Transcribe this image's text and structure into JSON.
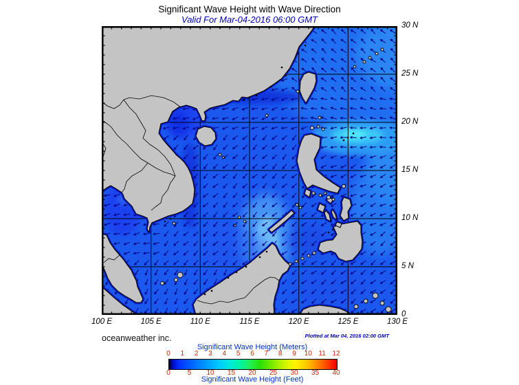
{
  "header": {
    "title": "Significant Wave Height with Wave Direction",
    "subtitle": "Valid For Mar-04-2016 06:00 GMT"
  },
  "map": {
    "lat_labels": [
      "30 N",
      "25 N",
      "20 N",
      "15 N",
      "10 N",
      "5 N",
      "0"
    ],
    "lon_labels": [
      "100 E",
      "105 E",
      "110 E",
      "115 E",
      "120 E",
      "125 E",
      "130 E"
    ]
  },
  "footer": {
    "credit": "oceanweather inc.",
    "plotted": "Plotted at Mar 04, 2016 02:00 GMT"
  },
  "legend": {
    "meters_label": "Significant Wave Height (Meters)",
    "feet_label": "Significant Wave Height (Feet)",
    "meters_ticks": [
      "0",
      "1",
      "2",
      "3",
      "4",
      "5",
      "6",
      "7",
      "8",
      "9",
      "10",
      "11",
      "12"
    ],
    "feet_ticks": [
      "0",
      "5",
      "10",
      "15",
      "20",
      "25",
      "30",
      "35",
      "40"
    ]
  },
  "colors": {
    "subtitle_blue": "#0000bb",
    "legend_label_blue": "#0030c8",
    "tick_number_red": "#d42400",
    "land_gray": "#c4c4c4",
    "ocean_base_blue": "#1b58ee",
    "arrow_navy": "#000080",
    "coast_dark_blue": "#0a1cc8"
  }
}
